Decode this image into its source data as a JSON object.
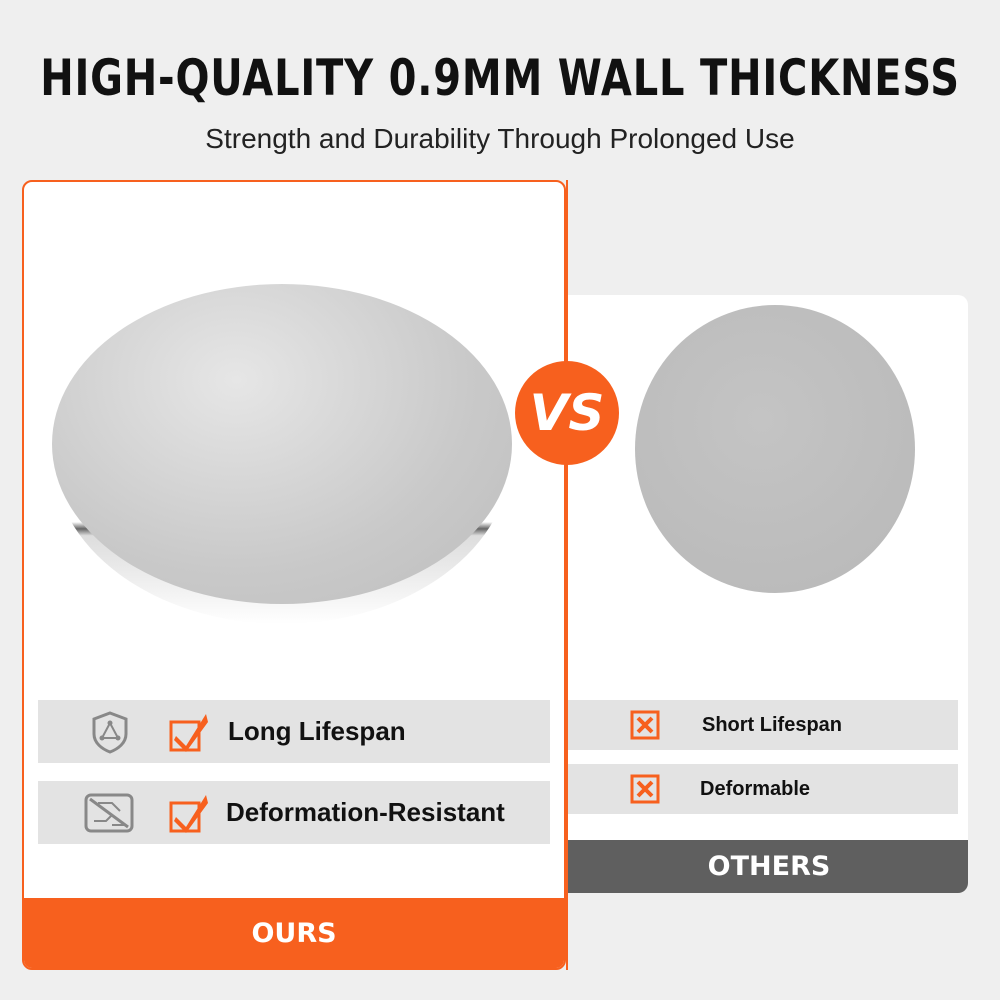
{
  "header": {
    "title": "HIGH-QUALITY 0.9MM WALL THICKNESS",
    "subtitle": "Strength and Durability Through Prolonged Use"
  },
  "colors": {
    "accent": "#f7601e",
    "others_band": "#5f5f5f",
    "row_bg": "#e3e3e3"
  },
  "vs_label": "VS",
  "ours": {
    "label": "OURS",
    "features": [
      {
        "icon": "shield-triangle-icon",
        "check": "checkbox-checked-icon",
        "label": "Long Lifespan"
      },
      {
        "icon": "circuit-crossed-icon",
        "check": "checkbox-checked-icon",
        "label": "Deformation-Resistant"
      }
    ]
  },
  "others": {
    "label": "OTHERS",
    "features": [
      {
        "icon": "checkbox-x-icon",
        "label": "Short Lifespan"
      },
      {
        "icon": "checkbox-x-icon",
        "label": "Deformable"
      }
    ]
  }
}
